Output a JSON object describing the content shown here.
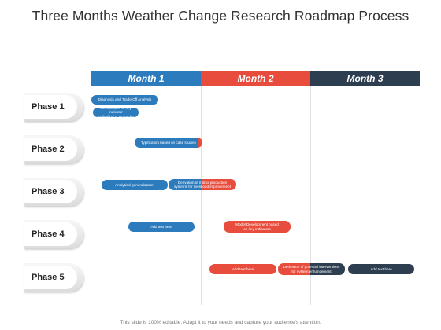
{
  "title": "Three Months Weather Change Research Roadmap Process",
  "months": [
    "Month 1",
    "Month 2",
    "Month 3"
  ],
  "phases": [
    "Phase 1",
    "Phase 2",
    "Phase 3",
    "Phase 4",
    "Phase 5"
  ],
  "tasks": {
    "diagnosis": "Diagnosis and Trade Off Analysis",
    "identification": "Identification of key indicator\nfor livelihood strategies",
    "typification": "Typification based on case studies",
    "analytical": "Analytical generalization",
    "derivation_matrix": "Derivation of matrix production\nsystems for livelihood improvement",
    "add_text_p4": "Add text here",
    "model_dev": "Model Development based\non key indicators",
    "add_text_p5a": "Add text here",
    "derivation_potential": "Derivation of potential interventions\nfor system enhancement",
    "add_text_p5b": "Add text here"
  },
  "colors": {
    "month1": "#2b7bbd",
    "month2": "#e84c3d",
    "month3": "#2c3e50"
  },
  "footer": "This slide is 100% editable. Adapt it to your needs and capture your audience's attention."
}
